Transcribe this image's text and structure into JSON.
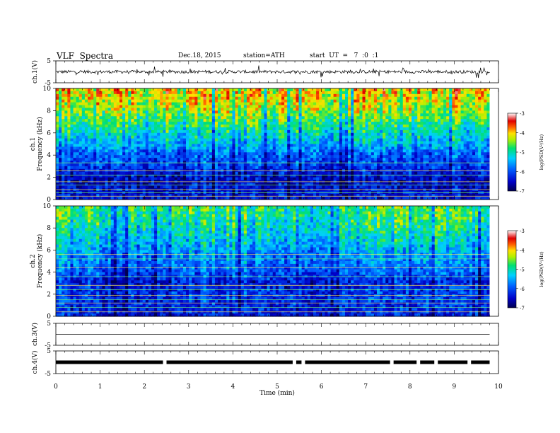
{
  "header": {
    "title": "VLF  Spectra",
    "date": "Dec.18, 2015",
    "station": "station=ATH",
    "start": "start  UT  =   7  :0  :1"
  },
  "chart_data": [
    {
      "type": "line",
      "panel": "ch1-waveform",
      "ylabel": "ch.1(V)",
      "ylim": [
        -5,
        5
      ],
      "yticks": [
        "5",
        "-5"
      ],
      "baseline": 0,
      "description_visible": "noisy trace around 0 V"
    },
    {
      "type": "heatmap",
      "panel": "ch1-spectrogram",
      "ylabel_line1": "ch.1",
      "ylabel_line2": "Frequency  (kHz)",
      "ylim": [
        0,
        10
      ],
      "yticks": [
        "0",
        "2",
        "4",
        "6",
        "8",
        "10"
      ],
      "colorbar": {
        "label": "log(PSD(V²/Hz)",
        "range": [
          -7,
          -3
        ],
        "ticks": [
          "-3",
          "-4",
          "-5",
          "-6",
          "-7"
        ]
      },
      "profile_by_freq_kHz": [
        {
          "f": 0.0,
          "level": -6.3
        },
        {
          "f": 1.0,
          "level": -6.4
        },
        {
          "f": 2.0,
          "level": -6.5
        },
        {
          "f": 3.0,
          "level": -6.1
        },
        {
          "f": 4.0,
          "level": -5.9
        },
        {
          "f": 5.0,
          "level": -5.4
        },
        {
          "f": 6.0,
          "level": -5.1
        },
        {
          "f": 7.0,
          "level": -4.7
        },
        {
          "f": 8.0,
          "level": -4.4
        },
        {
          "f": 9.0,
          "level": -4.1
        },
        {
          "f": 10.0,
          "level": -4.0
        }
      ],
      "lines_kHz": [
        0.3,
        0.6,
        0.9,
        1.3,
        1.6,
        2.2,
        2.6,
        3.3
      ]
    },
    {
      "type": "heatmap",
      "panel": "ch2-spectrogram",
      "ylabel_line1": "ch.2",
      "ylabel_line2": "Frequency  (kHz)",
      "ylim": [
        0,
        10
      ],
      "yticks": [
        "0",
        "2",
        "4",
        "6",
        "8",
        "10"
      ],
      "colorbar": {
        "label": "log(PSD(V²/Hz)",
        "range": [
          -7,
          -3
        ],
        "ticks": [
          "-3",
          "-4",
          "-5",
          "-6",
          "-7"
        ]
      },
      "profile_by_freq_kHz": [
        {
          "f": 0.0,
          "level": -6.3
        },
        {
          "f": 1.0,
          "level": -6.2
        },
        {
          "f": 2.0,
          "level": -6.1
        },
        {
          "f": 3.0,
          "level": -6.3
        },
        {
          "f": 4.0,
          "level": -5.9
        },
        {
          "f": 5.0,
          "level": -5.7
        },
        {
          "f": 6.0,
          "level": -5.5
        },
        {
          "f": 7.0,
          "level": -5.2
        },
        {
          "f": 8.0,
          "level": -5.0
        },
        {
          "f": 9.0,
          "level": -4.8
        },
        {
          "f": 10.0,
          "level": -4.7
        }
      ],
      "lines_kHz": [
        0.4,
        0.8,
        1.2,
        1.5,
        1.9,
        2.4,
        2.8,
        3.6,
        4.4,
        5.2,
        5.6
      ]
    },
    {
      "type": "line",
      "panel": "ch3-waveform",
      "ylabel": "ch.3(V)",
      "ylim": [
        -5,
        5
      ],
      "yticks": [
        "5",
        "-5"
      ],
      "baseline": 0,
      "description_visible": "flat line near 0 V"
    },
    {
      "type": "line",
      "panel": "ch4-waveform",
      "ylabel": "ch.4(V)",
      "ylim": [
        -5,
        5
      ],
      "yticks": [
        "5",
        "-5"
      ],
      "baseline": 0,
      "description_visible": "thick constant band near 0 V with brief gaps"
    }
  ],
  "xaxis": {
    "label": "Time  (min)",
    "range": [
      0,
      10
    ],
    "ticks": [
      "0",
      "1",
      "2",
      "3",
      "4",
      "5",
      "6",
      "7",
      "8",
      "9",
      "10"
    ],
    "data_end": 9.8
  },
  "colors": {
    "frame": "#000000",
    "trace": "#000000",
    "background": "#ffffff"
  }
}
